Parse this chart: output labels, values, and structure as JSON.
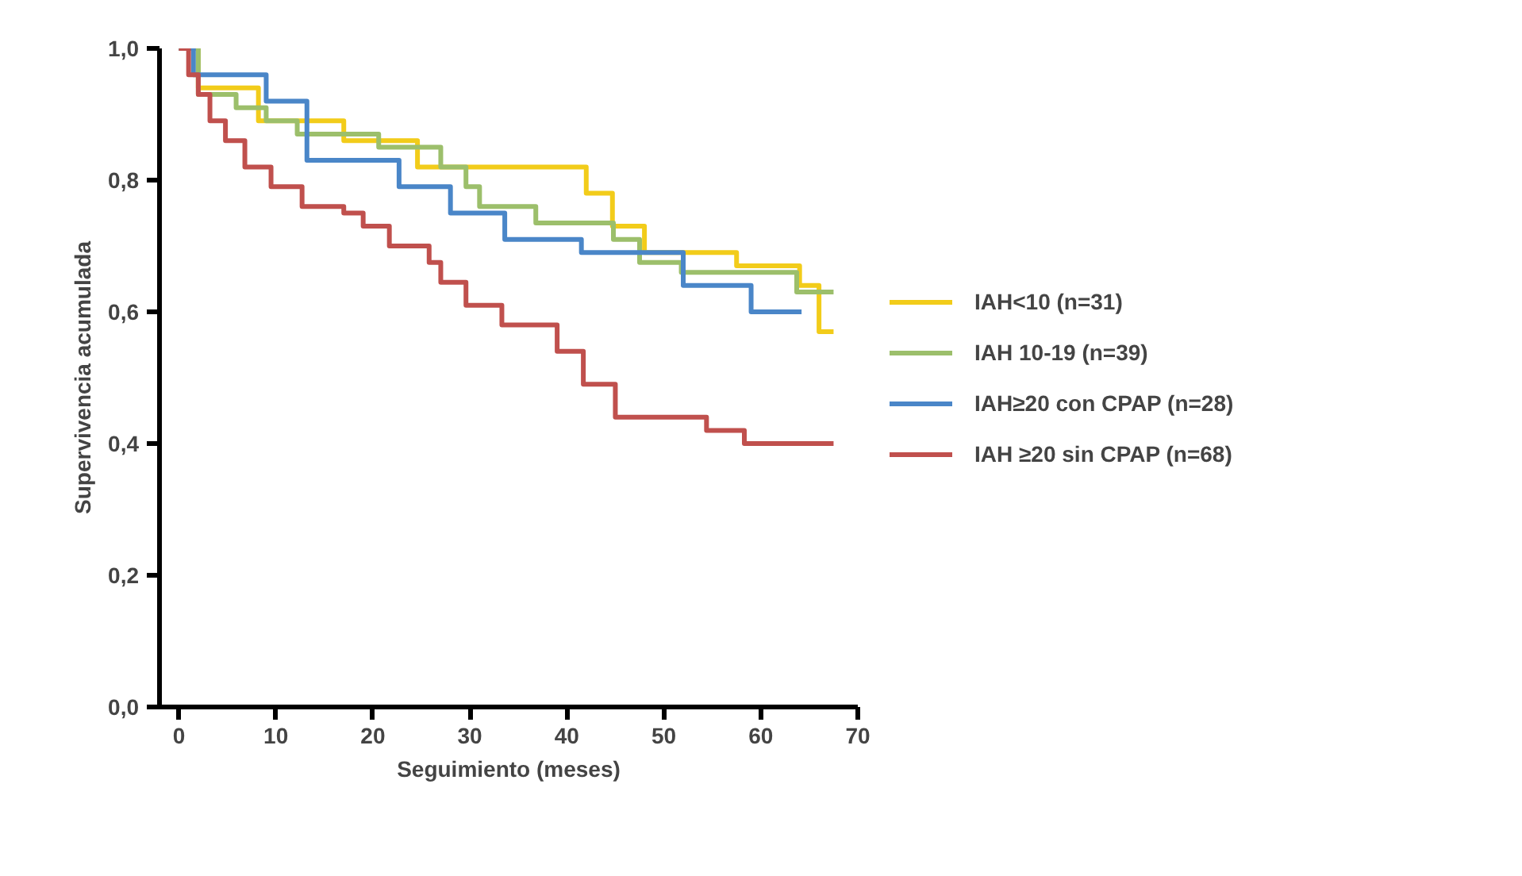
{
  "chart_data": {
    "type": "step",
    "xlabel": "Seguimiento (meses)",
    "ylabel": "Supervivencia acumulada",
    "xlim": [
      -2,
      70
    ],
    "ylim": [
      0,
      1.0
    ],
    "xticks": [
      0,
      10,
      20,
      30,
      40,
      50,
      60,
      70
    ],
    "yticks": [
      {
        "value": 0,
        "label": "0,0"
      },
      {
        "value": 0.2,
        "label": "0,2"
      },
      {
        "value": 0.4,
        "label": "0,4"
      },
      {
        "value": 0.6,
        "label": "0,6"
      },
      {
        "value": 0.8,
        "label": "0,8"
      },
      {
        "value": 1.0,
        "label": "1,0"
      }
    ],
    "grid": false,
    "legend": "right",
    "line_style": "solid",
    "marker": "none",
    "series": [
      {
        "name": "IAH<10 (n=31)",
        "color": "#f2cc1a",
        "x": [
          0,
          2,
          8.2,
          17,
          24.6,
          42,
          44.7,
          48,
          57.5,
          64,
          66,
          67.5
        ],
        "values": [
          1.0,
          0.94,
          0.89,
          0.86,
          0.82,
          0.78,
          0.73,
          0.69,
          0.67,
          0.64,
          0.57,
          0.57
        ]
      },
      {
        "name": "IAH 10-19 (n=39)",
        "color": "#9cbf6b",
        "x": [
          0,
          2,
          5.9,
          9,
          12.2,
          20.6,
          27,
          29.6,
          31,
          36.8,
          44.8,
          47.5,
          51.8,
          63.7,
          67.5
        ],
        "values": [
          1.0,
          0.93,
          0.91,
          0.89,
          0.87,
          0.85,
          0.82,
          0.79,
          0.76,
          0.735,
          0.71,
          0.675,
          0.66,
          0.63,
          0.63
        ]
      },
      {
        "name": "IAH≥20 con CPAP (n=28)",
        "color": "#4a86c8",
        "x": [
          0,
          1.5,
          9,
          13.2,
          22.7,
          28,
          33.6,
          41.5,
          52,
          59,
          64.2
        ],
        "values": [
          1.0,
          0.96,
          0.92,
          0.83,
          0.79,
          0.75,
          0.71,
          0.69,
          0.64,
          0.6,
          0.6
        ]
      },
      {
        "name": "IAH ≥20 sin CPAP (n=68)",
        "color": "#c0504d",
        "x": [
          0,
          1,
          2,
          3.2,
          4.8,
          6.8,
          9.5,
          12.7,
          17,
          19,
          21.7,
          25.8,
          27,
          29.6,
          33.3,
          39,
          41.7,
          45,
          54.4,
          58.3,
          67.5
        ],
        "values": [
          1.0,
          0.96,
          0.93,
          0.89,
          0.86,
          0.82,
          0.79,
          0.76,
          0.75,
          0.73,
          0.7,
          0.675,
          0.645,
          0.61,
          0.58,
          0.54,
          0.49,
          0.44,
          0.42,
          0.4,
          0.4
        ]
      }
    ]
  }
}
